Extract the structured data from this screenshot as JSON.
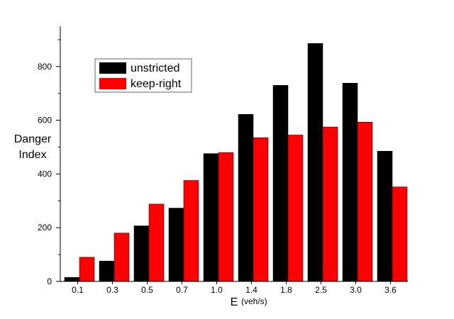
{
  "chart_data": {
    "type": "bar",
    "title": "",
    "xlabel": "E",
    "xlabel_unit": "(veh/s)",
    "ylabel_line1": "Danger",
    "ylabel_line2": "Index",
    "categories": [
      "0.1",
      "0.3",
      "0.5",
      "0.7",
      "1.0",
      "1.4",
      "1.8",
      "2.5",
      "3.0",
      "3.6"
    ],
    "yticks": [
      "0",
      "200",
      "400",
      "600",
      "800"
    ],
    "ylim": [
      0,
      950
    ],
    "grid": false,
    "legend_position": "top-left",
    "series": [
      {
        "name": "unstricted",
        "color": "#000000",
        "values": [
          15,
          76,
          207,
          273,
          476,
          622,
          730,
          886,
          738,
          485
        ]
      },
      {
        "name": "keep-right",
        "color": "#ff0000",
        "values": [
          90,
          180,
          288,
          376,
          480,
          535,
          545,
          575,
          593,
          352
        ]
      }
    ]
  }
}
